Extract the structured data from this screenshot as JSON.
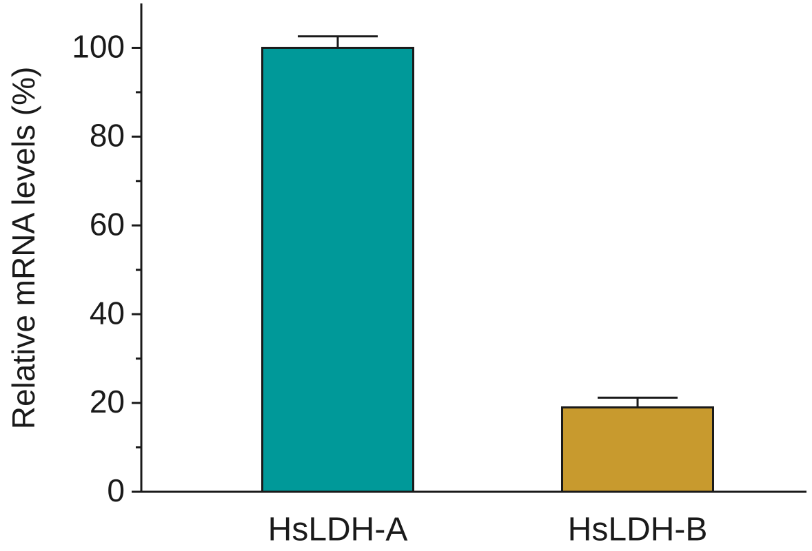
{
  "chart_data": {
    "type": "bar",
    "y_label": "Relative mRNA levels (%)",
    "categories": [
      "HsLDH-A",
      "HsLDH-B"
    ],
    "values": [
      100,
      19
    ],
    "errors": [
      2.6,
      2.2
    ],
    "colors": [
      "#009999",
      "#c89a2e"
    ],
    "ylim": [
      0,
      110
    ],
    "yticks": [
      0,
      20,
      40,
      60,
      80,
      100
    ],
    "minor_yticks": [
      10,
      30,
      50,
      70,
      90
    ]
  }
}
